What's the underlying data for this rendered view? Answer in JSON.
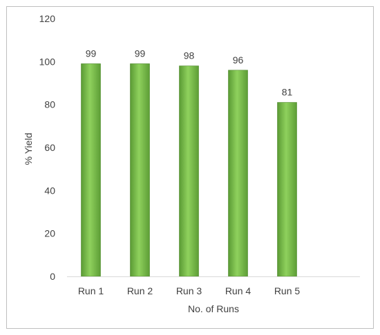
{
  "chart_data": {
    "type": "bar",
    "categories": [
      "Run 1",
      "Run 2",
      "Run 3",
      "Run 4",
      "Run 5"
    ],
    "values": [
      99,
      99,
      98,
      96,
      81
    ],
    "data_labels": [
      "99",
      "99",
      "98",
      "96",
      "81"
    ],
    "title": "",
    "xlabel": "No. of Runs",
    "ylabel": "% Yield",
    "ylim": [
      0,
      120
    ],
    "yticks": [
      0,
      20,
      40,
      60,
      80,
      100,
      120
    ],
    "ytick_labels": [
      "0",
      "20",
      "40",
      "60",
      "80",
      "100",
      "120"
    ],
    "grid": false,
    "legend": "none",
    "colors": {
      "bar_fill": "#70ad47",
      "bar_light": "#8fd15d",
      "bar_dark": "#4f8a2c",
      "axis": "#d9d9d9",
      "border": "#bfbfbf",
      "text": "#404040"
    }
  }
}
